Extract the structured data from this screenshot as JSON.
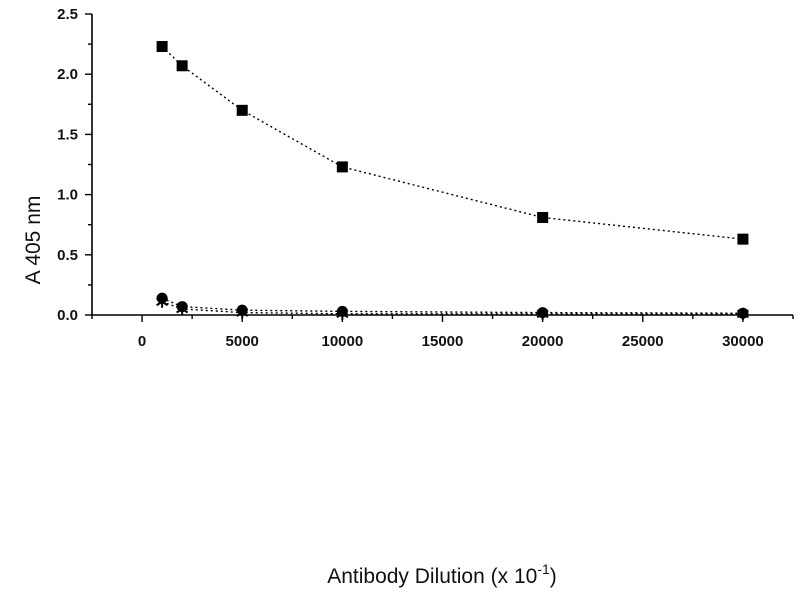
{
  "chart_data": {
    "type": "scatter",
    "title": "",
    "xlabel": "Antibody Dilution (x 10",
    "xlabel_sup": "-1",
    "xlabel_close": ")",
    "ylabel": "A 405 nm",
    "xlim": [
      -2500,
      32500
    ],
    "ylim": [
      0,
      2.5
    ],
    "xticks": [
      "0",
      "5000",
      "10000",
      "15000",
      "20000",
      "25000",
      "30000"
    ],
    "yticks": [
      "0.0",
      "0.5",
      "1.0",
      "1.5",
      "2.0",
      "2.5"
    ],
    "xtick_values": [
      0,
      5000,
      10000,
      15000,
      20000,
      25000,
      30000
    ],
    "ytick_values": [
      0,
      0.5,
      1.0,
      1.5,
      2.0,
      2.5
    ],
    "x": [
      1000,
      2000,
      5000,
      10000,
      20000,
      30000
    ],
    "grid": false,
    "legend": "none",
    "series": [
      {
        "marker": "square",
        "values": [
          2.23,
          2.07,
          1.7,
          1.23,
          0.81,
          0.63
        ]
      },
      {
        "marker": "circle",
        "values": [
          0.14,
          0.07,
          0.04,
          0.03,
          0.02,
          0.015
        ]
      },
      {
        "marker": "star",
        "values": [
          0.11,
          0.05,
          0.02,
          0.01,
          0.01,
          0.01
        ]
      }
    ],
    "colors": {
      "marks": "#000000",
      "background": "#ffffff"
    }
  }
}
